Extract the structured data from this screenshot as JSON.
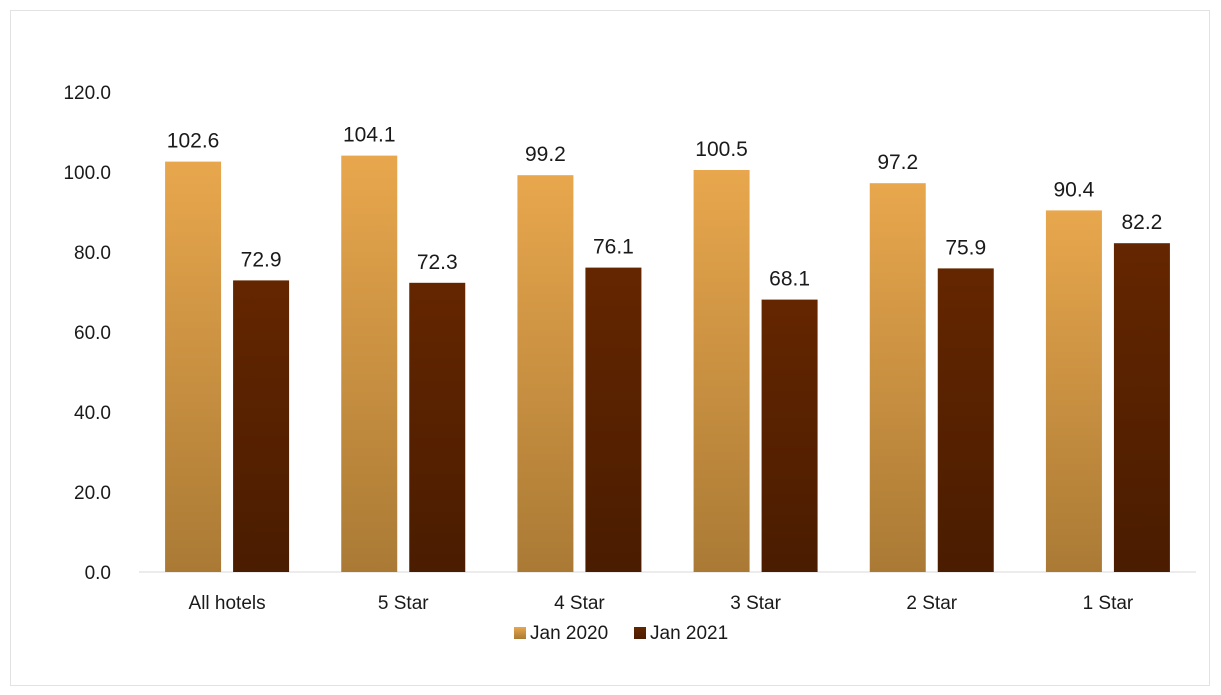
{
  "chart_data": {
    "type": "bar",
    "categories": [
      "All hotels",
      "5 Star",
      "4 Star",
      "3 Star",
      "2 Star",
      "1 Star"
    ],
    "series": [
      {
        "name": "Jan 2020",
        "values": [
          102.6,
          104.1,
          99.2,
          100.5,
          97.2,
          90.4
        ],
        "color_top": "#e8a74d",
        "color_bottom": "#aa7a35"
      },
      {
        "name": "Jan 2021",
        "values": [
          72.9,
          72.3,
          76.1,
          68.1,
          75.9,
          82.2
        ],
        "color_top": "#642600",
        "color_bottom": "#4a1c00"
      }
    ],
    "ylim": [
      0,
      120
    ],
    "yticks": [
      "0.0",
      "20.0",
      "40.0",
      "60.0",
      "80.0",
      "100.0",
      "120.0"
    ],
    "data_labels": [
      [
        "102.6",
        "104.1",
        "99.2",
        "100.5",
        "97.2",
        "90.4"
      ],
      [
        "72.9",
        "72.3",
        "76.1",
        "68.1",
        "75.9",
        "82.2"
      ]
    ],
    "grid": false,
    "legend_position": "bottom",
    "title": "",
    "xlabel": "",
    "ylabel": ""
  }
}
